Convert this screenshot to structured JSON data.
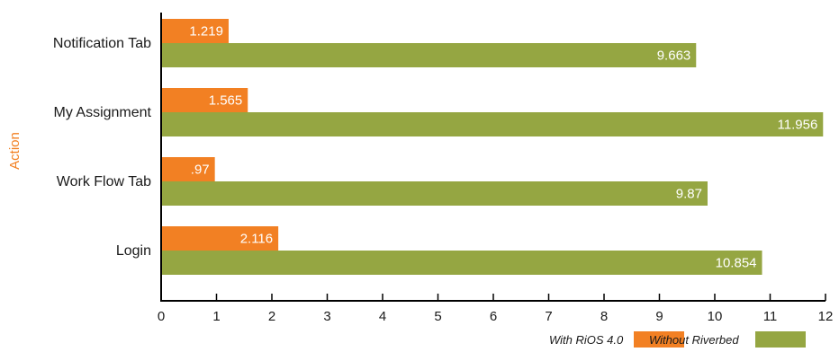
{
  "chart_data": {
    "type": "bar",
    "orientation": "horizontal",
    "ylabel": "Action",
    "categories": [
      "Notification Tab",
      "My Assignment",
      "Work Flow Tab",
      "Login"
    ],
    "series": [
      {
        "name": "With RiOS 4.0",
        "color": "#f28023",
        "values": [
          1.219,
          1.565,
          0.97,
          2.116
        ],
        "labels": [
          "1.219",
          "1.565",
          ".97",
          "2.116"
        ]
      },
      {
        "name": "Without Riverbed",
        "color": "#95a642",
        "values": [
          9.663,
          11.956,
          9.87,
          10.854
        ],
        "labels": [
          "9.663",
          "11.956",
          "9.87",
          "10.854"
        ]
      }
    ],
    "xlim": [
      0,
      12
    ],
    "xticks": [
      "0",
      "1",
      "2",
      "3",
      "4",
      "5",
      "6",
      "7",
      "8",
      "9",
      "10",
      "11",
      "12"
    ],
    "grid": false,
    "legend_position": "bottom-right"
  }
}
